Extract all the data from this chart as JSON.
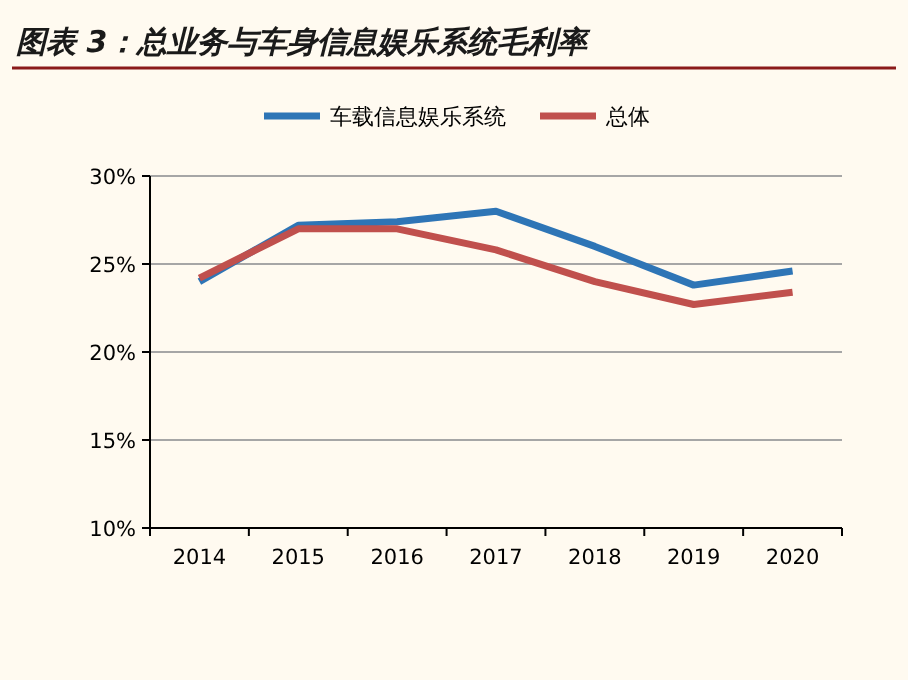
{
  "chart_data": {
    "type": "line",
    "title": "图表 3：总业务与车身信息娱乐系统毛利率",
    "categories": [
      "2014",
      "2015",
      "2016",
      "2017",
      "2018",
      "2019",
      "2020"
    ],
    "series": [
      {
        "name": "车载信息娱乐系统",
        "color": "#2e75b6",
        "values": [
          24.0,
          27.2,
          27.4,
          28.0,
          26.0,
          23.8,
          24.6
        ]
      },
      {
        "name": "总体",
        "color": "#c0504d",
        "values": [
          24.2,
          27.0,
          27.0,
          25.8,
          24.0,
          22.7,
          23.4
        ]
      }
    ],
    "ylim": [
      10,
      30
    ],
    "yticks": [
      {
        "value": 10,
        "label": "10%"
      },
      {
        "value": 15,
        "label": "15%"
      },
      {
        "value": 20,
        "label": "20%"
      },
      {
        "value": 25,
        "label": "25%"
      },
      {
        "value": 30,
        "label": "30%"
      }
    ],
    "grid": "y",
    "legend": "top",
    "marker": "none",
    "line_style": "solid"
  }
}
